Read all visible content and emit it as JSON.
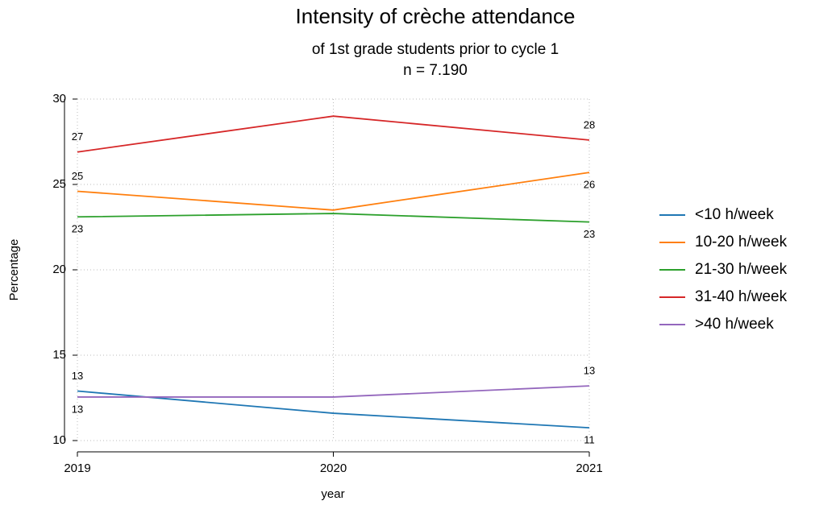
{
  "chart_data": {
    "type": "line",
    "title": "Intensity of crèche attendance",
    "subtitle": "of 1st grade students prior to cycle 1",
    "subtitle2": "n = 7.190",
    "x_label": "year",
    "y_label": "Percentage",
    "x": [
      2019,
      2020,
      2021
    ],
    "xlim": [
      2019,
      2021
    ],
    "xticks": [
      2019,
      2020,
      2021
    ],
    "ylim": [
      10,
      30
    ],
    "yticks": [
      10,
      15,
      20,
      25,
      30
    ],
    "grid": true,
    "legend": "right",
    "series": [
      {
        "name": "<10 h/week",
        "color": "#1f77b4",
        "values": [
          12.9,
          11.6,
          10.75
        ],
        "value_labels": [
          "13",
          null,
          "11"
        ]
      },
      {
        "name": "10-20 h/week",
        "color": "#ff7f0e",
        "values": [
          24.6,
          23.5,
          25.7
        ],
        "value_labels": [
          "25",
          null,
          "26"
        ]
      },
      {
        "name": "21-30 h/week",
        "color": "#2ca02c",
        "values": [
          23.1,
          23.3,
          22.8
        ],
        "value_labels": [
          "23",
          null,
          "23"
        ]
      },
      {
        "name": "31-40 h/week",
        "color": "#d62728",
        "values": [
          26.9,
          29.0,
          27.6
        ],
        "value_labels": [
          "27",
          null,
          "28"
        ]
      },
      {
        "name": ">40 h/week",
        "color": "#9467bd",
        "values": [
          12.55,
          12.55,
          13.2
        ],
        "value_labels": [
          "13",
          null,
          "13"
        ]
      }
    ]
  }
}
